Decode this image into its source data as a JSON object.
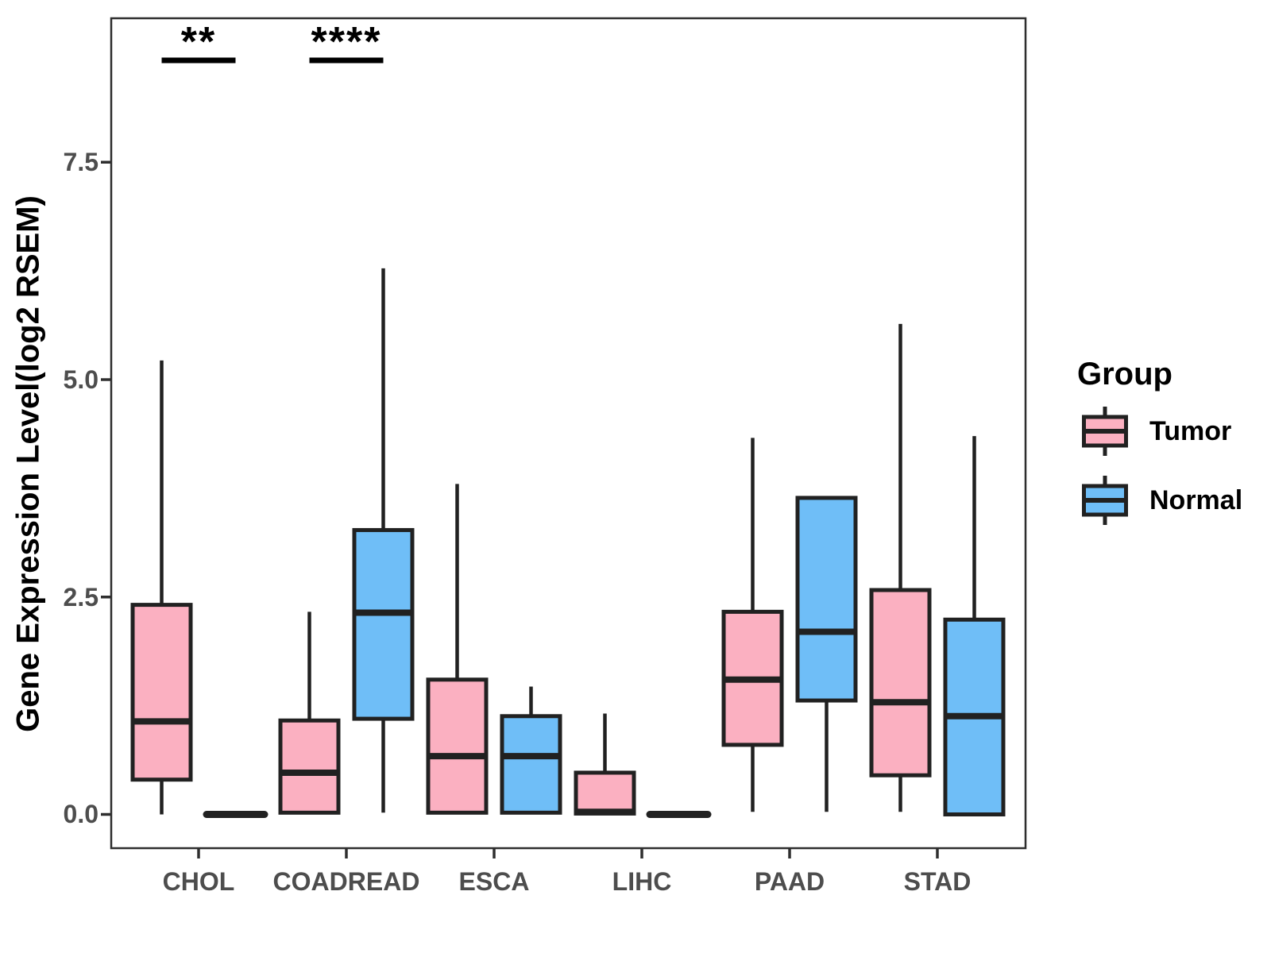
{
  "colors": {
    "tumor_fill": "#FBB0C1",
    "normal_fill": "#6FBEF7",
    "box_stroke": "#212121",
    "panel_border": "#2e2e2e",
    "axis_text": "#4d4d4d",
    "background": "#ffffff"
  },
  "chart_data": {
    "type": "grouped_boxplot",
    "title": "",
    "ylabel": "Gene Expression Level(log2 RSEM)",
    "xlabel": "",
    "categories": [
      "CHOL",
      "COADREAD",
      "ESCA",
      "LIHC",
      "PAAD",
      "STAD"
    ],
    "yticks": [
      0.0,
      2.5,
      5.0,
      7.5
    ],
    "ytick_labels": [
      "0.0",
      "2.5",
      "5.0",
      "7.5"
    ],
    "ylim": [
      -0.4,
      9.15
    ],
    "grid": "off",
    "legend": {
      "title": "Group",
      "position": "right",
      "items": [
        {
          "label": "Tumor",
          "color": "#FBB0C1"
        },
        {
          "label": "Normal",
          "color": "#6FBEF7"
        }
      ]
    },
    "series": [
      {
        "name": "Tumor",
        "color": "#FBB0C1",
        "stats": [
          {
            "category": "CHOL",
            "min": 0.0,
            "q1": 0.4,
            "median": 1.07,
            "q3": 2.41,
            "max": 5.22
          },
          {
            "category": "COADREAD",
            "min": 0.0,
            "q1": 0.02,
            "median": 0.48,
            "q3": 1.08,
            "max": 2.33
          },
          {
            "category": "ESCA",
            "min": 0.0,
            "q1": 0.02,
            "median": 0.67,
            "q3": 1.55,
            "max": 3.8
          },
          {
            "category": "LIHC",
            "min": 0.0,
            "q1": 0.01,
            "median": 0.03,
            "q3": 0.48,
            "max": 1.16
          },
          {
            "category": "PAAD",
            "min": 0.03,
            "q1": 0.8,
            "median": 1.55,
            "q3": 2.33,
            "max": 4.33
          },
          {
            "category": "STAD",
            "min": 0.03,
            "q1": 0.45,
            "median": 1.29,
            "q3": 2.58,
            "max": 5.64
          }
        ]
      },
      {
        "name": "Normal",
        "color": "#6FBEF7",
        "stats": [
          {
            "category": "CHOL",
            "min": 0.0,
            "q1": 0.0,
            "median": 0.0,
            "q3": 0.0,
            "max": 0.0
          },
          {
            "category": "COADREAD",
            "min": 0.02,
            "q1": 1.1,
            "median": 2.32,
            "q3": 3.27,
            "max": 6.28
          },
          {
            "category": "ESCA",
            "min": 0.02,
            "q1": 0.02,
            "median": 0.67,
            "q3": 1.13,
            "max": 1.47
          },
          {
            "category": "LIHC",
            "min": 0.0,
            "q1": 0.0,
            "median": 0.0,
            "q3": 0.0,
            "max": 0.0
          },
          {
            "category": "PAAD",
            "min": 0.03,
            "q1": 1.31,
            "median": 2.1,
            "q3": 3.64,
            "max": 3.64
          },
          {
            "category": "STAD",
            "min": 0.0,
            "q1": 0.0,
            "median": 1.13,
            "q3": 2.24,
            "max": 4.35
          }
        ]
      }
    ],
    "significance": [
      {
        "category": "CHOL",
        "index": 0,
        "label": "**"
      },
      {
        "category": "COADREAD",
        "index": 1,
        "label": "****"
      }
    ]
  }
}
